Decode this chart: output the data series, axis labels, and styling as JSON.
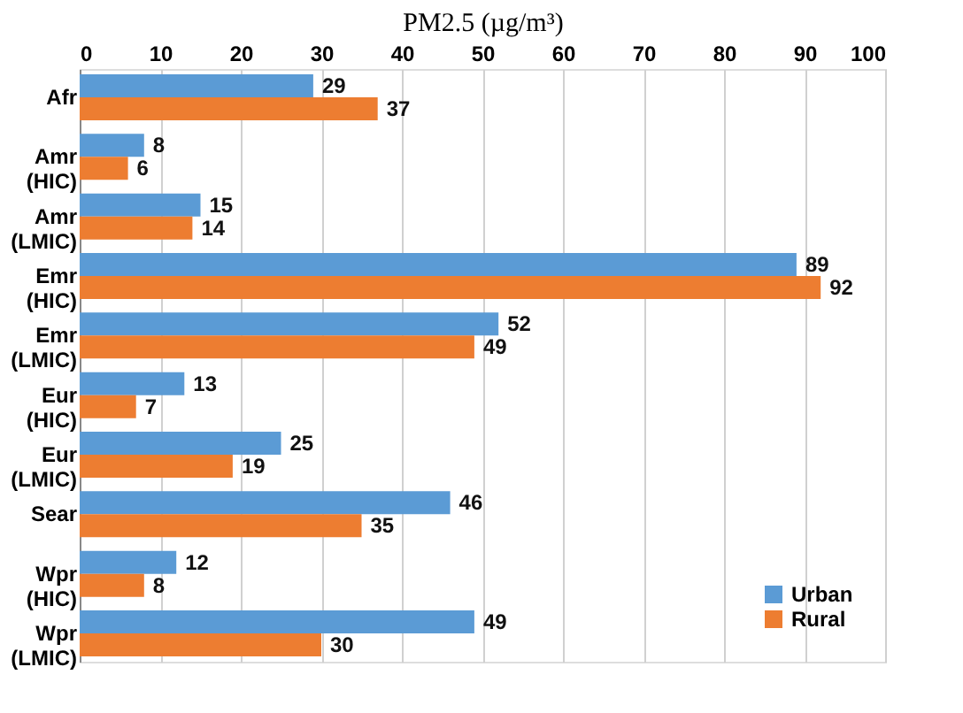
{
  "chart_data": {
    "type": "bar",
    "orientation": "horizontal",
    "xlabel": "PM2.5 (µg/m³)",
    "categories": [
      "Afr",
      "Amr\n(HIC)",
      "Amr\n(LMIC)",
      "Emr\n(HIC)",
      "Emr\n(LMIC)",
      "Eur\n(HIC)",
      "Eur\n(LMIC)",
      "Sear",
      "Wpr\n(HIC)",
      "Wpr\n(LMIC)"
    ],
    "series": [
      {
        "name": "Urban",
        "color": "#5b9bd5",
        "values": [
          29,
          8,
          15,
          89,
          52,
          13,
          25,
          46,
          12,
          49
        ]
      },
      {
        "name": "Rural",
        "color": "#ed7d31",
        "values": [
          37,
          6,
          14,
          92,
          49,
          7,
          19,
          35,
          8,
          30
        ]
      }
    ],
    "xlim": [
      0,
      100
    ],
    "xticks": [
      0,
      10,
      20,
      30,
      40,
      50,
      60,
      70,
      80,
      90,
      100
    ],
    "grid": "x",
    "legend": "bottom right",
    "data_labels": true
  }
}
